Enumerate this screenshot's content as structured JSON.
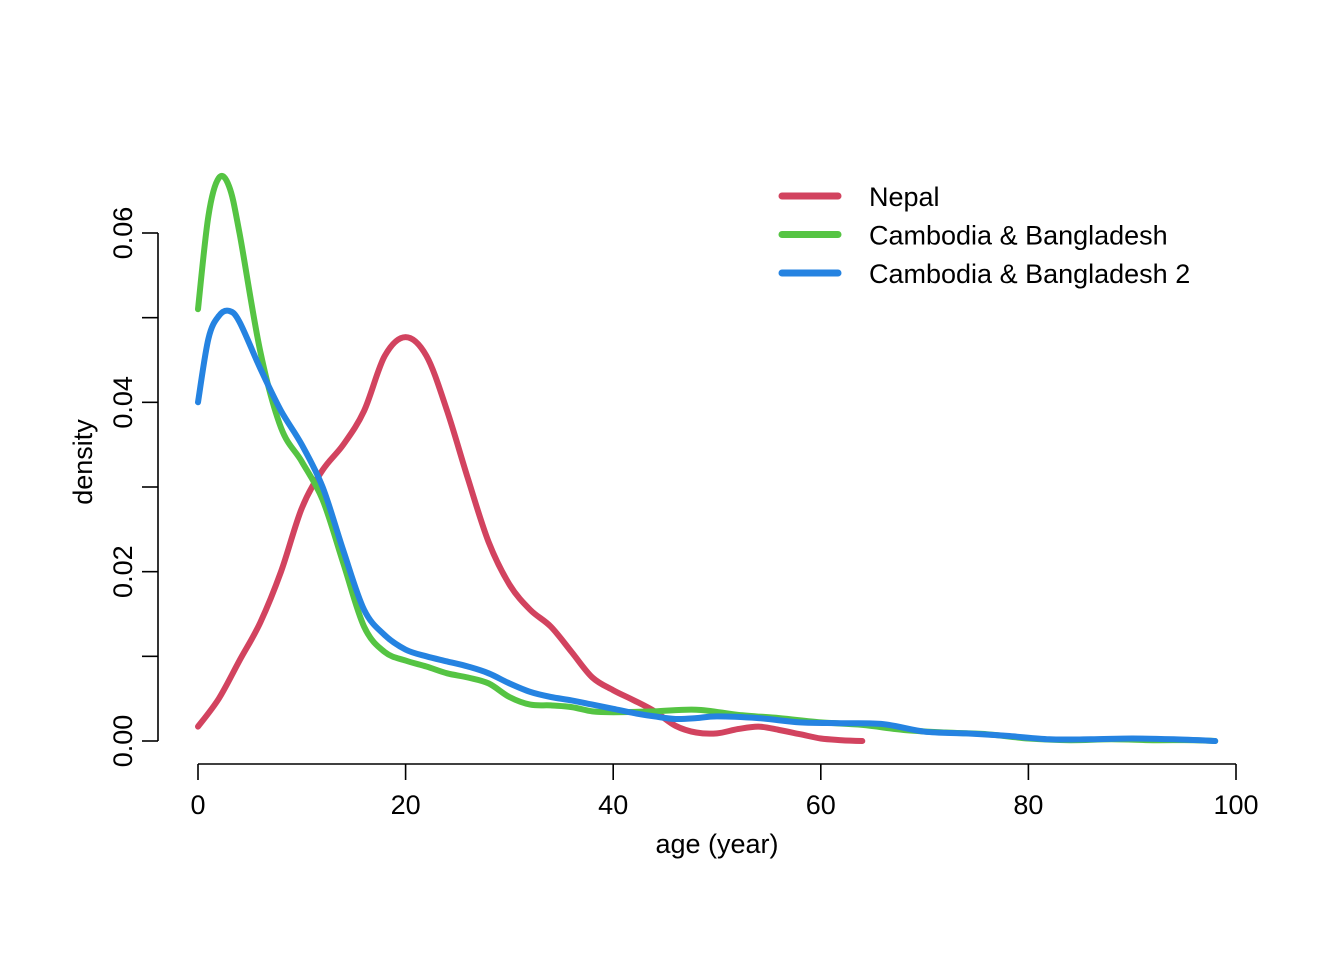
{
  "chart_data": {
    "type": "line",
    "title": "",
    "xlabel": "age (year)",
    "ylabel": "density",
    "xlim": [
      0,
      100
    ],
    "ylim": [
      0,
      0.06
    ],
    "x_ticks": [
      0,
      20,
      40,
      60,
      80,
      100
    ],
    "x_tick_labels": [
      "0",
      "20",
      "40",
      "60",
      "80",
      "100"
    ],
    "y_ticks": [
      0,
      0.01,
      0.02,
      0.03,
      0.04,
      0.05,
      0.06
    ],
    "y_tick_labels": [
      "0.00",
      "",
      "0.02",
      "",
      "0.04",
      "",
      "0.06"
    ],
    "grid": false,
    "legend_position": "top-right",
    "series": [
      {
        "name": "Nepal",
        "color": "#D2435F",
        "x": [
          0,
          2,
          4,
          6,
          8,
          10,
          12,
          14,
          16,
          18,
          20,
          22,
          24,
          26,
          28,
          30,
          32,
          34,
          36,
          38,
          40,
          42,
          44,
          46,
          48,
          50,
          52,
          54,
          56,
          58,
          60,
          62,
          64
        ],
        "y": [
          0.0017,
          0.005,
          0.0095,
          0.014,
          0.02,
          0.0275,
          0.032,
          0.035,
          0.039,
          0.0455,
          0.0477,
          0.0455,
          0.039,
          0.031,
          0.0235,
          0.0185,
          0.0155,
          0.0135,
          0.0105,
          0.0075,
          0.006,
          0.0048,
          0.0035,
          0.0018,
          0.001,
          0.0009,
          0.0014,
          0.0017,
          0.0013,
          0.0008,
          0.0003,
          0.0001,
          0.0
        ]
      },
      {
        "name": "Cambodia & Bangladesh",
        "color": "#55C443",
        "x": [
          0,
          1,
          2,
          3,
          4,
          6,
          8,
          10,
          12,
          14,
          16,
          18,
          20,
          22,
          24,
          26,
          28,
          30,
          32,
          34,
          36,
          38,
          40,
          44,
          48,
          52,
          56,
          60,
          64,
          68,
          72,
          76,
          80,
          84,
          88,
          92,
          96,
          98
        ],
        "y": [
          0.051,
          0.062,
          0.0665,
          0.0655,
          0.06,
          0.046,
          0.037,
          0.033,
          0.0285,
          0.021,
          0.0135,
          0.0105,
          0.0095,
          0.0088,
          0.008,
          0.0075,
          0.0068,
          0.0052,
          0.0043,
          0.0042,
          0.004,
          0.0035,
          0.0034,
          0.0035,
          0.0037,
          0.0031,
          0.0027,
          0.0022,
          0.0019,
          0.0013,
          0.001,
          0.0008,
          0.0003,
          0.0001,
          0.0002,
          0.0001,
          0.0001,
          0.0
        ]
      },
      {
        "name": "Cambodia & Bangladesh 2",
        "color": "#2583E1",
        "x": [
          0,
          1,
          2,
          3,
          4,
          6,
          8,
          10,
          12,
          14,
          16,
          18,
          20,
          22,
          24,
          26,
          28,
          30,
          32,
          34,
          36,
          38,
          40,
          42,
          44,
          46,
          48,
          50,
          54,
          58,
          62,
          66,
          70,
          74,
          78,
          82,
          86,
          90,
          94,
          98
        ],
        "y": [
          0.04,
          0.0475,
          0.0502,
          0.0508,
          0.0495,
          0.044,
          0.039,
          0.035,
          0.03,
          0.0225,
          0.0155,
          0.0125,
          0.0108,
          0.01,
          0.0094,
          0.0088,
          0.008,
          0.0068,
          0.0058,
          0.0052,
          0.0048,
          0.0043,
          0.0038,
          0.0033,
          0.0029,
          0.0026,
          0.0027,
          0.0029,
          0.0027,
          0.0022,
          0.0021,
          0.002,
          0.0011,
          0.0009,
          0.0006,
          0.0002,
          0.0002,
          0.0003,
          0.0002,
          0.0
        ]
      }
    ]
  }
}
